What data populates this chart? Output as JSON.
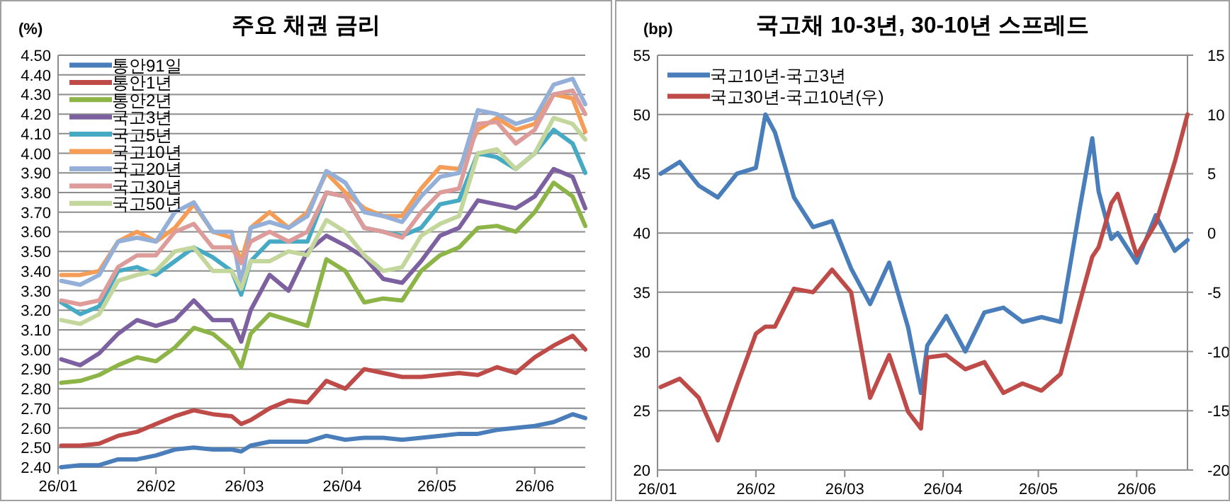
{
  "chart_data": [
    {
      "type": "line",
      "title": "주요 채권 금리",
      "ylabel": "(%)",
      "legend": "top left",
      "grid": "y",
      "x": [
        "--01-02",
        "--01-08",
        "--01-14",
        "--01-20",
        "--01-26",
        "--02-01",
        "--02-07",
        "--02-13",
        "--02-19",
        "--02-25",
        "--02-28",
        "--03-03",
        "--03-09",
        "--03-15",
        "--03-21",
        "--03-27",
        "--04-02",
        "--04-08",
        "--04-14",
        "--04-20",
        "--04-26",
        "--05-02",
        "--05-08",
        "--05-14",
        "--05-20",
        "--05-26",
        "--06-01",
        "--06-07",
        "--06-13",
        "--06-17"
      ],
      "xlim": [
        "--01-01",
        "--06-17"
      ],
      "xticks": [
        {
          "value": "--01-01",
          "label": "26/01"
        },
        {
          "value": "--02-01",
          "label": "26/02"
        },
        {
          "value": "--03-01",
          "label": "26/03"
        },
        {
          "value": "--04-01",
          "label": "26/04"
        },
        {
          "value": "--05-01",
          "label": "26/05"
        },
        {
          "value": "--06-01",
          "label": "26/06"
        }
      ],
      "ylim": [
        2.4,
        4.5
      ],
      "yticks": [
        {
          "value": 2.4,
          "label": "2.40"
        },
        {
          "value": 2.5,
          "label": "2.50"
        },
        {
          "value": 2.6,
          "label": "2.60"
        },
        {
          "value": 2.7,
          "label": "2.70"
        },
        {
          "value": 2.8,
          "label": "2.80"
        },
        {
          "value": 2.9,
          "label": "2.90"
        },
        {
          "value": 3.0,
          "label": "3.00"
        },
        {
          "value": 3.1,
          "label": "3.10"
        },
        {
          "value": 3.2,
          "label": "3.20"
        },
        {
          "value": 3.3,
          "label": "3.30"
        },
        {
          "value": 3.4,
          "label": "3.40"
        },
        {
          "value": 3.5,
          "label": "3.50"
        },
        {
          "value": 3.6,
          "label": "3.60"
        },
        {
          "value": 3.7,
          "label": "3.70"
        },
        {
          "value": 3.8,
          "label": "3.80"
        },
        {
          "value": 3.9,
          "label": "3.90"
        },
        {
          "value": 4.0,
          "label": "4.00"
        },
        {
          "value": 4.1,
          "label": "4.10"
        },
        {
          "value": 4.2,
          "label": "4.20"
        },
        {
          "value": 4.3,
          "label": "4.30"
        },
        {
          "value": 4.4,
          "label": "4.40"
        },
        {
          "value": 4.5,
          "label": "4.50"
        }
      ],
      "series": [
        {
          "name": "통안91일",
          "color": "#4a7ebb",
          "values": [
            2.4,
            2.41,
            2.41,
            2.44,
            2.44,
            2.46,
            2.49,
            2.5,
            2.49,
            2.49,
            2.48,
            2.51,
            2.53,
            2.53,
            2.53,
            2.56,
            2.54,
            2.55,
            2.55,
            2.54,
            2.55,
            2.56,
            2.57,
            2.57,
            2.59,
            2.6,
            2.61,
            2.63,
            2.67,
            2.65
          ]
        },
        {
          "name": "통안1년",
          "color": "#be4b48",
          "values": [
            2.51,
            2.51,
            2.52,
            2.56,
            2.58,
            2.62,
            2.66,
            2.69,
            2.67,
            2.66,
            2.62,
            2.64,
            2.7,
            2.74,
            2.73,
            2.84,
            2.8,
            2.9,
            2.88,
            2.86,
            2.86,
            2.87,
            2.88,
            2.87,
            2.91,
            2.88,
            2.96,
            3.02,
            3.07,
            3.0
          ]
        },
        {
          "name": "통안2년",
          "color": "#8db446",
          "values": [
            2.83,
            2.84,
            2.87,
            2.92,
            2.96,
            2.94,
            3.01,
            3.11,
            3.08,
            3.0,
            2.91,
            3.08,
            3.18,
            3.15,
            3.12,
            3.46,
            3.4,
            3.24,
            3.26,
            3.25,
            3.4,
            3.48,
            3.52,
            3.62,
            3.63,
            3.6,
            3.7,
            3.85,
            3.78,
            3.63
          ]
        },
        {
          "name": "국고3년",
          "color": "#7d60a0",
          "values": [
            2.95,
            2.92,
            2.98,
            3.08,
            3.15,
            3.12,
            3.15,
            3.25,
            3.15,
            3.15,
            3.04,
            3.2,
            3.38,
            3.3,
            3.5,
            3.58,
            3.53,
            3.47,
            3.36,
            3.34,
            3.45,
            3.58,
            3.62,
            3.76,
            3.74,
            3.72,
            3.78,
            3.92,
            3.88,
            3.72
          ]
        },
        {
          "name": "국고5년",
          "color": "#46aac5",
          "values": [
            3.24,
            3.18,
            3.22,
            3.4,
            3.42,
            3.38,
            3.45,
            3.52,
            3.47,
            3.4,
            3.28,
            3.45,
            3.55,
            3.55,
            3.55,
            3.8,
            3.78,
            3.62,
            3.6,
            3.58,
            3.62,
            3.74,
            3.76,
            4.0,
            3.98,
            3.92,
            4.0,
            4.12,
            4.05,
            3.9
          ]
        },
        {
          "name": "국고10년",
          "color": "#f59d56",
          "values": [
            3.38,
            3.38,
            3.4,
            3.55,
            3.6,
            3.55,
            3.62,
            3.74,
            3.6,
            3.57,
            3.45,
            3.62,
            3.7,
            3.62,
            3.7,
            3.9,
            3.8,
            3.72,
            3.68,
            3.68,
            3.82,
            3.93,
            3.92,
            4.12,
            4.18,
            4.12,
            4.15,
            4.3,
            4.28,
            4.11
          ]
        },
        {
          "name": "국고20년",
          "color": "#94b0d8",
          "values": [
            3.35,
            3.33,
            3.38,
            3.55,
            3.57,
            3.55,
            3.7,
            3.75,
            3.6,
            3.6,
            3.33,
            3.62,
            3.65,
            3.62,
            3.68,
            3.91,
            3.85,
            3.7,
            3.68,
            3.65,
            3.78,
            3.88,
            3.9,
            4.22,
            4.2,
            4.15,
            4.18,
            4.35,
            4.38,
            4.25
          ]
        },
        {
          "name": "국고30년",
          "color": "#dd9c9a",
          "values": [
            3.25,
            3.23,
            3.25,
            3.42,
            3.48,
            3.48,
            3.6,
            3.64,
            3.52,
            3.52,
            3.44,
            3.55,
            3.6,
            3.55,
            3.6,
            3.8,
            3.78,
            3.62,
            3.6,
            3.57,
            3.7,
            3.8,
            3.82,
            4.15,
            4.16,
            4.05,
            4.12,
            4.3,
            4.32,
            4.2
          ]
        },
        {
          "name": "국고50년",
          "color": "#c3d69b",
          "values": [
            3.15,
            3.13,
            3.18,
            3.35,
            3.38,
            3.4,
            3.5,
            3.52,
            3.4,
            3.4,
            3.31,
            3.45,
            3.45,
            3.5,
            3.48,
            3.66,
            3.6,
            3.48,
            3.4,
            3.42,
            3.58,
            3.64,
            3.68,
            4.0,
            4.02,
            3.92,
            4.0,
            4.18,
            4.15,
            4.07
          ]
        }
      ]
    },
    {
      "type": "line",
      "title": "국고채 10-3년, 30-10년 스프레드",
      "ylabel": "(bp)",
      "legend": "top left",
      "grid": "y",
      "x": [
        "--01-02",
        "--01-08",
        "--01-14",
        "--01-20",
        "--01-26",
        "--02-01",
        "--02-04",
        "--02-07",
        "--02-13",
        "--02-19",
        "--02-25",
        "--03-03",
        "--03-09",
        "--03-15",
        "--03-21",
        "--03-25",
        "--03-27",
        "--04-02",
        "--04-08",
        "--04-14",
        "--04-20",
        "--04-26",
        "--05-02",
        "--05-08",
        "--05-14",
        "--05-18",
        "--05-20",
        "--05-24",
        "--05-26",
        "--06-01",
        "--06-07",
        "--06-13",
        "--06-17"
      ],
      "xlim": [
        "--01-01",
        "--06-17"
      ],
      "xticks": [
        {
          "value": "--01-01",
          "label": "26/01"
        },
        {
          "value": "--02-01",
          "label": "26/02"
        },
        {
          "value": "--03-01",
          "label": "26/03"
        },
        {
          "value": "--04-01",
          "label": "26/04"
        },
        {
          "value": "--05-01",
          "label": "26/05"
        },
        {
          "value": "--06-01",
          "label": "26/06"
        }
      ],
      "ylim": [
        20,
        55
      ],
      "yticks": [
        20,
        25,
        30,
        35,
        40,
        45,
        50,
        55
      ],
      "y2lim": [
        -20,
        15
      ],
      "y2ticks": [
        -20,
        -15,
        -10,
        -5,
        0,
        5,
        10,
        15
      ],
      "series": [
        {
          "name": "국고10년-국고3년",
          "color": "#4a7ebb",
          "values": [
            45,
            46,
            44,
            43,
            45,
            45.5,
            50,
            48.5,
            43,
            40.5,
            41,
            37,
            34,
            37.5,
            32,
            26.5,
            30.5,
            33,
            30,
            33.3,
            33.7,
            32.5,
            32.9,
            32.5,
            42,
            48,
            43.5,
            39.5,
            40,
            37.5,
            41.5,
            38.5,
            39.4
          ]
        },
        {
          "name": "국고30년-국고10년(우)",
          "color": "#be4b48",
          "axis": "y2",
          "values": [
            -13,
            -12.3,
            -13.9,
            -17.5,
            -12.9,
            -8.5,
            -7.9,
            -7.9,
            -4.7,
            -5,
            -3.1,
            -5,
            -13.9,
            -10.3,
            -15.1,
            -16.5,
            -10.5,
            -10.3,
            -11.5,
            -10.9,
            -13.5,
            -12.7,
            -13.3,
            -11.9,
            -5.9,
            -2,
            -1.2,
            2.5,
            3.3,
            -1.9,
            0.8,
            6,
            10
          ]
        }
      ]
    }
  ]
}
